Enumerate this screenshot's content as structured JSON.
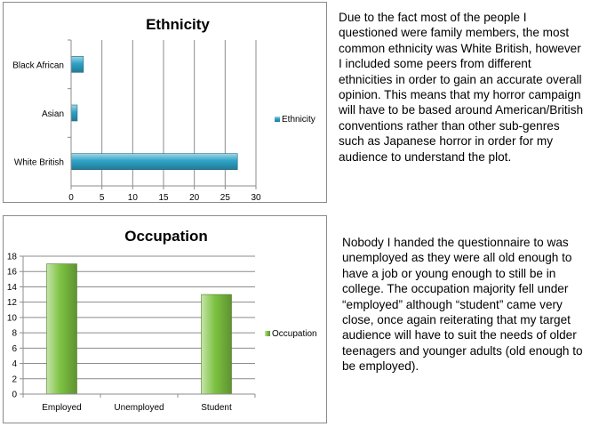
{
  "charts": [
    {
      "type": "bar",
      "orientation": "horizontal",
      "title": "Ethnicity",
      "categories": [
        "Black African",
        "Asian",
        "White British"
      ],
      "series": [
        {
          "name": "Ethnicity",
          "values": [
            2,
            1,
            27
          ]
        }
      ],
      "xlim": [
        0,
        30
      ],
      "ticks": [
        0,
        5,
        10,
        15,
        20,
        25,
        30
      ],
      "grid": true,
      "legend": "right",
      "color": "#2ea3c7"
    },
    {
      "type": "bar",
      "orientation": "vertical",
      "title": "Occupation",
      "categories": [
        "Employed",
        "Unemployed",
        "Student"
      ],
      "series": [
        {
          "name": "Occupation",
          "values": [
            17,
            0,
            13
          ]
        }
      ],
      "ylim": [
        0,
        18
      ],
      "ticks": [
        0,
        2,
        4,
        6,
        8,
        10,
        12,
        14,
        16,
        18
      ],
      "grid": true,
      "legend": "right",
      "color": "#7dc242"
    }
  ],
  "text": {
    "ethnicity_paragraph": "Due to the fact most of the people I questioned were family members, the most common ethnicity was White British, however I included some peers from different ethnicities in order to gain an accurate overall opinion. This means that my horror campaign will have to be based around American/British conventions rather than other sub-genres such as Japanese horror in order for my audience to understand the plot.",
    "occupation_paragraph": "Nobody I handed the questionnaire to was unemployed as they were all old enough to have a job or young enough to still be in college. The occupation majority fell under “employed” although “student” came very close, once again reiterating that my target audience will have to suit the needs of older teenagers and younger adults (old enough to be employed)."
  }
}
